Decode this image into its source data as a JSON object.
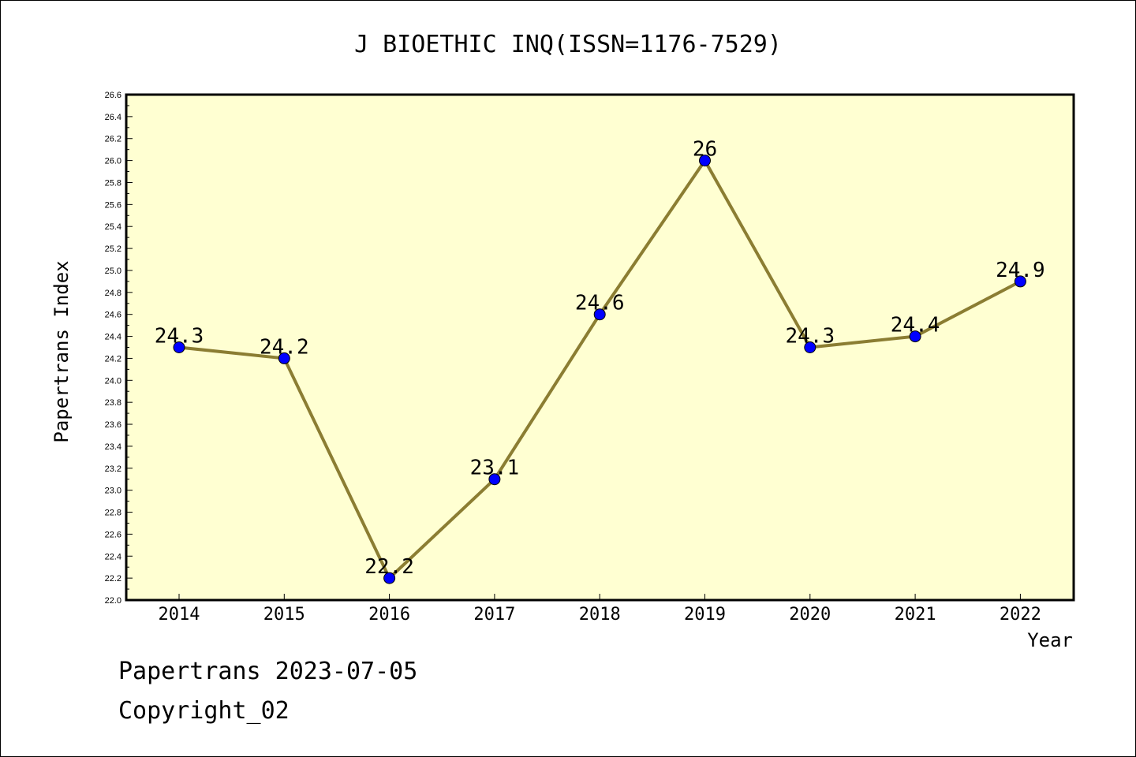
{
  "chart_data": {
    "type": "line",
    "title": "J BIOETHIC INQ(ISSN=1176-7529)",
    "xlabel": "Year",
    "ylabel": "Papertrans Index",
    "categories": [
      "2014",
      "2015",
      "2016",
      "2017",
      "2018",
      "2019",
      "2020",
      "2021",
      "2022"
    ],
    "values": [
      24.3,
      24.2,
      22.2,
      23.1,
      24.6,
      26.0,
      24.3,
      24.4,
      24.9
    ],
    "data_labels": [
      "24.3",
      "24.2",
      "22.2",
      "23.1",
      "24.6",
      "26",
      "24.3",
      "24.4",
      "24.9"
    ],
    "ylim": [
      22.0,
      26.6
    ],
    "yticks": [
      "22.0",
      "22.2",
      "22.4",
      "22.6",
      "22.8",
      "23.0",
      "23.2",
      "23.4",
      "23.6",
      "23.8",
      "24.0",
      "24.2",
      "24.4",
      "24.6",
      "24.8",
      "25.0",
      "25.2",
      "25.4",
      "25.6",
      "25.8",
      "26.0",
      "26.2",
      "26.4",
      "26.6"
    ],
    "grid": false,
    "colors": {
      "plot_background": "#ffffd2",
      "line": "#8b7d32",
      "marker": "#0000ff",
      "marker_edge": "#000000",
      "axes": "#000000"
    }
  },
  "footer": {
    "line1": "Papertrans 2023-07-05",
    "line2": "Copyright_02"
  }
}
